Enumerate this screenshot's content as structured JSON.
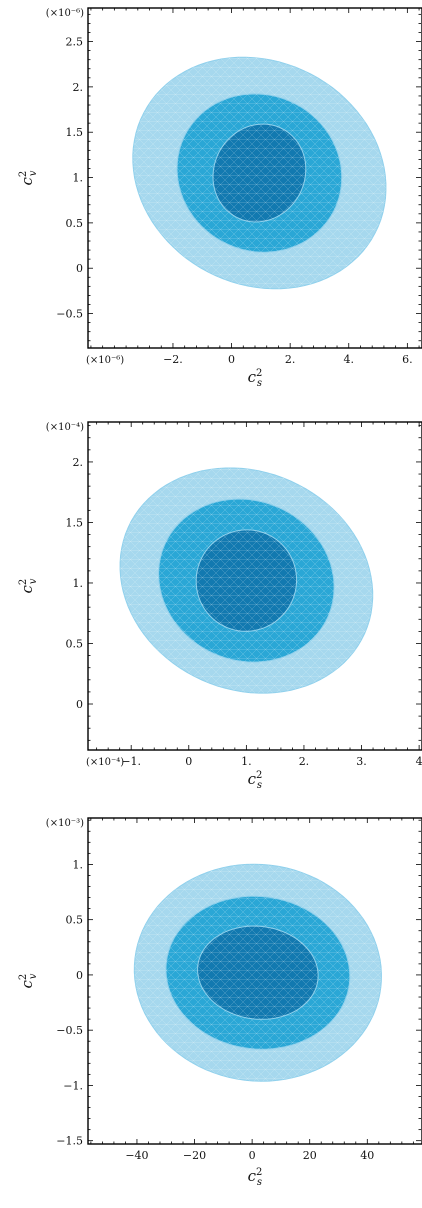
{
  "colors": {
    "sigma3": "#a6d8ee",
    "sigma2": "#2aa7d6",
    "sigma1": "#1279b0",
    "edge": "#8fd0ec"
  },
  "chart_data": [
    {
      "type": "contour",
      "title": "",
      "xlabel": "c_s^2",
      "ylabel": "c_v^2",
      "x_multiplier": "(×10⁻⁶)",
      "y_multiplier": "(×10⁻⁶)",
      "xlim": [
        -4.9,
        6.5
      ],
      "ylim": [
        -0.88,
        2.87
      ],
      "x_ticks": [
        -2,
        0,
        2,
        4,
        6
      ],
      "x_tick_labels": [
        "−2.",
        "0",
        "2.",
        "4.",
        "6."
      ],
      "y_ticks": [
        -0.5,
        0,
        0.5,
        1,
        1.5,
        2,
        2.5
      ],
      "y_tick_labels": [
        "−0.5",
        "0",
        "0.5",
        "1.",
        "1.5",
        "2.",
        "2.5"
      ],
      "regions": [
        {
          "level": "3-sigma",
          "cx": 0.95,
          "cy": 1.05,
          "rx": 4.45,
          "ry": 1.23,
          "tilt": -0.48
        },
        {
          "level": "2-sigma",
          "cx": 0.95,
          "cy": 1.05,
          "rx": 2.85,
          "ry": 0.86,
          "tilt": -0.48
        },
        {
          "level": "1-sigma",
          "cx": 0.95,
          "cy": 1.05,
          "rx": 1.55,
          "ry": 0.55,
          "tilt": -0.48
        }
      ]
    },
    {
      "type": "contour",
      "title": "",
      "xlabel": "c_s^2",
      "ylabel": "c_v^2",
      "x_multiplier": "(×10⁻⁴)",
      "y_multiplier": "(×10⁻⁴)",
      "xlim": [
        -1.75,
        4.05
      ],
      "ylim": [
        -0.38,
        2.33
      ],
      "x_ticks": [
        -1,
        0,
        1,
        2,
        3,
        4
      ],
      "x_tick_labels": [
        "−1.",
        "0",
        "1.",
        "2.",
        "3.",
        "4"
      ],
      "y_ticks": [
        0,
        0.5,
        1,
        1.5,
        2
      ],
      "y_tick_labels": [
        "0",
        "0.5",
        "1.",
        "1.5",
        "2."
      ],
      "regions": [
        {
          "level": "3-sigma",
          "cx": 1.0,
          "cy": 1.02,
          "rx": 2.25,
          "ry": 0.9,
          "tilt": -0.42
        },
        {
          "level": "2-sigma",
          "cx": 1.0,
          "cy": 1.02,
          "rx": 1.55,
          "ry": 0.66,
          "tilt": -0.42
        },
        {
          "level": "1-sigma",
          "cx": 1.0,
          "cy": 1.02,
          "rx": 0.87,
          "ry": 0.42,
          "tilt": -0.42
        }
      ]
    },
    {
      "type": "contour",
      "title": "",
      "xlabel": "c_s^2",
      "ylabel": "c_v^2",
      "x_multiplier": "",
      "y_multiplier": "(×10⁻³)",
      "xlim": [
        -57,
        59
      ],
      "ylim": [
        -1.53,
        1.42
      ],
      "x_ticks": [
        -40,
        -20,
        0,
        20,
        40
      ],
      "x_tick_labels": [
        "−40",
        "−20",
        "0",
        "20",
        "40"
      ],
      "y_ticks": [
        -1.5,
        -1,
        -0.5,
        0,
        0.5,
        1
      ],
      "y_tick_labels": [
        "−1.5",
        "−1.",
        "−0.5",
        "0",
        "0.5",
        "1."
      ],
      "regions": [
        {
          "level": "3-sigma",
          "cx": 2.0,
          "cy": 0.02,
          "rx": 43.0,
          "ry": 0.98,
          "tilt": -0.12
        },
        {
          "level": "2-sigma",
          "cx": 2.0,
          "cy": 0.02,
          "rx": 32.0,
          "ry": 0.69,
          "tilt": -0.12
        },
        {
          "level": "1-sigma",
          "cx": 2.0,
          "cy": 0.02,
          "rx": 21.0,
          "ry": 0.42,
          "tilt": -0.12
        }
      ]
    }
  ]
}
